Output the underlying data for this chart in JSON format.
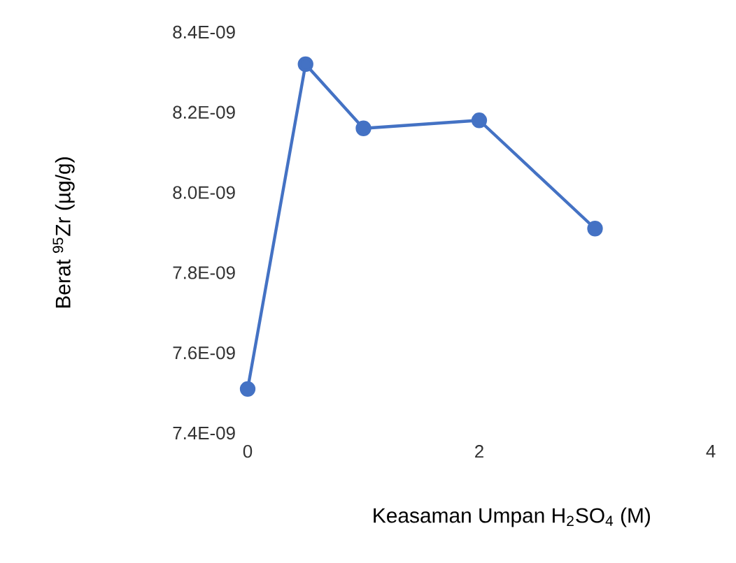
{
  "chart_data": {
    "type": "line",
    "xlabel": "Keasaman Umpan H$_{2}$SO$_{4}$ (M)",
    "ylabel": "Berat $^{95}$Zr (µg/g)",
    "x": [
      0,
      0.5,
      1,
      2,
      3
    ],
    "series": [
      {
        "color": "#4472c4",
        "values": [
          7.51e-09,
          8.32e-09,
          8.16e-09,
          8.18e-09,
          7.91e-09
        ]
      }
    ],
    "xlim": [
      0,
      4
    ],
    "xticks": [
      0,
      2,
      4
    ],
    "ylim": [
      7.4e-09,
      8.4e-09
    ],
    "yticks": [
      {
        "value": 7.4e-09,
        "label": "7.4E-09"
      },
      {
        "value": 7.6e-09,
        "label": "7.6E-09"
      },
      {
        "value": 7.8e-09,
        "label": "7.8E-09"
      },
      {
        "value": 8e-09,
        "label": "8.0E-09"
      },
      {
        "value": 8.2e-09,
        "label": "8.2E-09"
      },
      {
        "value": 8.4e-09,
        "label": "8.4E-09"
      }
    ],
    "grid": false,
    "marker": "circle",
    "line_style": "solid"
  }
}
